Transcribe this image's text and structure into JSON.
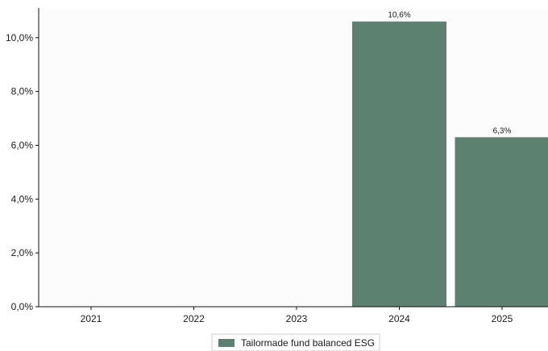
{
  "chart_data": {
    "type": "bar",
    "categories": [
      "2021",
      "2022",
      "2023",
      "2024",
      "2025"
    ],
    "series": [
      {
        "name": "Tailormade fund balanced ESG",
        "values": [
          null,
          null,
          null,
          10.6,
          6.3
        ],
        "data_labels": [
          "",
          "",
          "",
          "10,6%",
          "6,3%"
        ]
      }
    ],
    "y_ticks": [
      0,
      2,
      4,
      6,
      8,
      10
    ],
    "y_tick_labels": [
      "0,0%",
      "2,0%",
      "4,0%",
      "6,0%",
      "8,0%",
      "10,0%"
    ],
    "ylim": [
      0,
      11.1
    ],
    "grid": false,
    "legend_position": "bottom-center",
    "colors": {
      "bar": "#5d8170",
      "background": "#fcfcfc",
      "axis": "#111111"
    }
  }
}
